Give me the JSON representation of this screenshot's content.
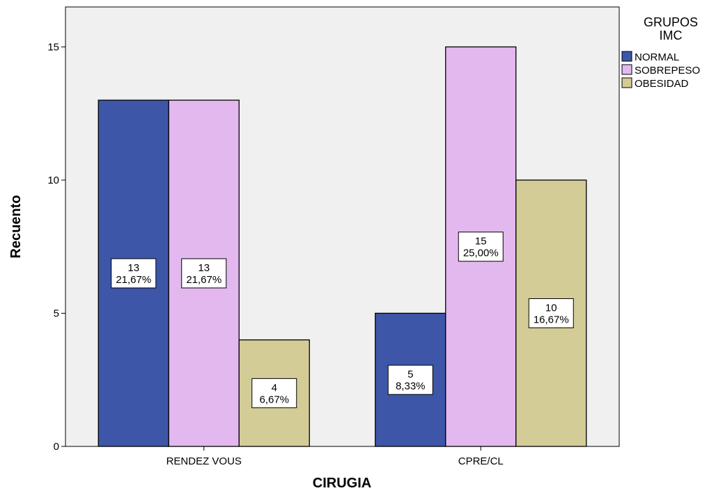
{
  "chart_data": {
    "type": "bar",
    "xlabel": "CIRUGIA",
    "ylabel": "Recuento",
    "categories": [
      "RENDEZ VOUS",
      "CPRE/CL"
    ],
    "ylim": [
      0,
      16.5
    ],
    "yticks": [
      0,
      5,
      10,
      15
    ],
    "grid": false,
    "legend": {
      "title_lines": [
        "GRUPOS",
        "IMC"
      ],
      "placement": "right"
    },
    "series": [
      {
        "name": "NORMAL",
        "color": "#3d56a8",
        "values": [
          13,
          5
        ],
        "labels": [
          [
            "13",
            "21,67%"
          ],
          [
            "5",
            "8,33%"
          ]
        ]
      },
      {
        "name": "SOBREPESO",
        "color": "#e2b8ef",
        "values": [
          13,
          15
        ],
        "labels": [
          [
            "13",
            "21,67%"
          ],
          [
            "15",
            "25,00%"
          ]
        ]
      },
      {
        "name": "OBESIDAD",
        "color": "#d3cc96",
        "values": [
          4,
          10
        ],
        "labels": [
          [
            "4",
            "6,67%"
          ],
          [
            "10",
            "16,67%"
          ]
        ]
      }
    ]
  }
}
